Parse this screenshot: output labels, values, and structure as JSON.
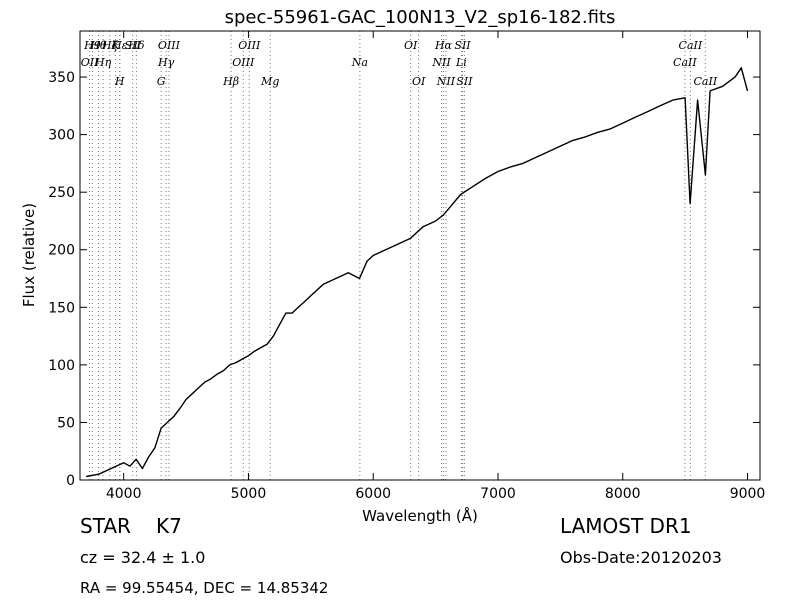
{
  "chart_data": {
    "type": "line",
    "title": "spec-55961-GAC_100N13_V2_sp16-182.fits",
    "xlabel": "Wavelength (Å)",
    "ylabel": "Flux (relative)",
    "xlim": [
      3650,
      9100
    ],
    "ylim": [
      0,
      390
    ],
    "xticks": [
      4000,
      5000,
      6000,
      7000,
      8000,
      9000
    ],
    "yticks": [
      0,
      50,
      100,
      150,
      200,
      250,
      300,
      350
    ],
    "grid": false,
    "series": [
      {
        "color": "#000000",
        "x": [
          3700,
          3800,
          3900,
          4000,
          4050,
          4100,
          4150,
          4200,
          4250,
          4300,
          4350,
          4400,
          4450,
          4500,
          4550,
          4600,
          4650,
          4700,
          4750,
          4800,
          4850,
          4900,
          4950,
          5000,
          5050,
          5100,
          5150,
          5200,
          5250,
          5300,
          5350,
          5400,
          5450,
          5500,
          5600,
          5700,
          5800,
          5890,
          5950,
          6000,
          6100,
          6200,
          6300,
          6400,
          6500,
          6560,
          6600,
          6700,
          6800,
          6900,
          7000,
          7100,
          7200,
          7300,
          7400,
          7500,
          7600,
          7700,
          7800,
          7900,
          8000,
          8100,
          8200,
          8300,
          8400,
          8500,
          8540,
          8600,
          8662,
          8700,
          8800,
          8900,
          8950,
          9000
        ],
        "y": [
          3,
          5,
          10,
          15,
          12,
          18,
          10,
          20,
          28,
          45,
          50,
          55,
          62,
          70,
          75,
          80,
          85,
          88,
          92,
          95,
          100,
          102,
          105,
          108,
          112,
          115,
          118,
          125,
          135,
          145,
          145,
          150,
          155,
          160,
          170,
          175,
          180,
          175,
          190,
          195,
          200,
          205,
          210,
          220,
          225,
          230,
          235,
          248,
          255,
          262,
          268,
          272,
          275,
          280,
          285,
          290,
          295,
          298,
          302,
          305,
          310,
          315,
          320,
          325,
          330,
          332,
          240,
          330,
          265,
          338,
          342,
          350,
          358,
          338
        ]
      }
    ],
    "lines": [
      {
        "wl": 3727,
        "label": "OII",
        "row": 1
      },
      {
        "wl": 3750,
        "label": "H9",
        "row": 0
      },
      {
        "wl": 3798,
        "label": "Hθ",
        "row": 0
      },
      {
        "wl": 3835,
        "label": "Hη",
        "row": 1
      },
      {
        "wl": 3889,
        "label": "Hζ",
        "row": 0
      },
      {
        "wl": 3934,
        "label": "K",
        "row": 0
      },
      {
        "wl": 3970,
        "label": "Hε",
        "row": 0
      },
      {
        "wl": 3968,
        "label": "H",
        "row": 2
      },
      {
        "wl": 4072,
        "label": "SII",
        "row": 0
      },
      {
        "wl": 4102,
        "label": "Hδ",
        "row": 0
      },
      {
        "wl": 4300,
        "label": "G",
        "row": 2
      },
      {
        "wl": 4340,
        "label": "Hγ",
        "row": 1
      },
      {
        "wl": 4363,
        "label": "OIII",
        "row": 0
      },
      {
        "wl": 4861,
        "label": "Hβ",
        "row": 2
      },
      {
        "wl": 4959,
        "label": "OIII",
        "row": 1
      },
      {
        "wl": 5007,
        "label": "OIII",
        "row": 0
      },
      {
        "wl": 5175,
        "label": "Mg",
        "row": 2
      },
      {
        "wl": 5893,
        "label": "Na",
        "row": 1
      },
      {
        "wl": 6300,
        "label": "OI",
        "row": 0
      },
      {
        "wl": 6364,
        "label": "OI",
        "row": 2
      },
      {
        "wl": 6548,
        "label": "NII",
        "row": 1
      },
      {
        "wl": 6563,
        "label": "Hα",
        "row": 0
      },
      {
        "wl": 6583,
        "label": "NII",
        "row": 2
      },
      {
        "wl": 6707,
        "label": "Li",
        "row": 1
      },
      {
        "wl": 6716,
        "label": "SII",
        "row": 0
      },
      {
        "wl": 6731,
        "label": "SII",
        "row": 2
      },
      {
        "wl": 8498,
        "label": "CaII",
        "row": 1
      },
      {
        "wl": 8542,
        "label": "CaII",
        "row": 0
      },
      {
        "wl": 8662,
        "label": "CaII",
        "row": 2
      }
    ]
  },
  "info": {
    "class_label": "STAR",
    "subclass": "K7",
    "cz": "cz = 32.4 ± 1.0",
    "radec": "RA = 99.55454, DEC = 14.85342",
    "survey": "LAMOST DR1",
    "obs_date": "Obs-Date:20120203"
  }
}
